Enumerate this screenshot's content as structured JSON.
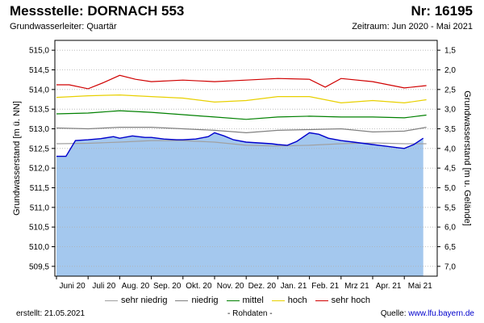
{
  "header": {
    "title": "Messstelle: DORNACH 553",
    "nr": "Nr: 16195",
    "aquifer": "Grundwasserleiter: Quartär",
    "period": "Zeitraum: Jun 2020 - Mai 2021"
  },
  "footer": {
    "created": "erstellt:  21.05.2021",
    "rohdaten": "- Rohdaten -",
    "source_label": "Quelle: ",
    "source_link": "www.lfu.bayern.de"
  },
  "colors": {
    "fill": "#a4c8ee",
    "measured": "#0000cc",
    "sehr_niedrig": "#a0a0a0",
    "niedrig": "#808080",
    "mittel": "#008000",
    "hoch": "#e8d000",
    "sehr_hoch": "#d00000"
  },
  "chart_data": {
    "type": "line",
    "title": "Messstelle: DORNACH 553",
    "ylabel": "Grundwasserstand [m ü. NN]",
    "y2label": "Grundwasserstand [m u. Gelände]",
    "ylim": [
      509.25,
      515.25
    ],
    "yticks": [
      "515,0",
      "514,5",
      "514,0",
      "513,5",
      "513,0",
      "512,5",
      "512,0",
      "511,5",
      "511,0",
      "510,5",
      "510,0",
      "509,5"
    ],
    "y2ticks": [
      "1,5",
      "2,0",
      "2,5",
      "3,0",
      "3,5",
      "4,0",
      "4,5",
      "5,0",
      "5,5",
      "6,0",
      "6,5",
      "7,0"
    ],
    "x_months": [
      "Juni 20",
      "Juli 20",
      "Aug. 20",
      "Sep. 20",
      "Okt. 20",
      "Nov. 20",
      "Dez. 20",
      "Jan. 21",
      "Feb. 21",
      "Mrz 21",
      "Apr. 21",
      "Mai 21"
    ],
    "x_months_display": [
      "Juni 20",
      "Juli 20",
      "Aug. 20",
      "Sep. 20",
      "Okt. 20",
      "Nov. 20",
      "Dez. 20",
      "Jan. 21",
      "Feb. 21",
      "Mrz 21",
      "Apr. 21",
      "Mai 21"
    ],
    "legend": [
      "sehr niedrig",
      "niedrig",
      "mittel",
      "hoch",
      "sehr hoch"
    ],
    "series": [
      {
        "name": "sehr niedrig",
        "t": [
          0,
          1,
          2,
          3,
          4,
          5,
          6,
          7,
          8,
          9,
          10,
          11,
          11.7
        ],
        "values": [
          512.62,
          512.63,
          512.66,
          512.7,
          512.7,
          512.66,
          512.58,
          512.56,
          512.58,
          512.62,
          512.64,
          512.62,
          512.62
        ]
      },
      {
        "name": "niedrig",
        "t": [
          0,
          1,
          2,
          3,
          4,
          5,
          6,
          7,
          8,
          9,
          10,
          11,
          11.7
        ],
        "values": [
          513.02,
          513.0,
          513.04,
          513.04,
          513.0,
          512.96,
          512.9,
          512.96,
          512.98,
          513.0,
          512.92,
          512.94,
          513.04
        ]
      },
      {
        "name": "mittel",
        "t": [
          0,
          1,
          2,
          3,
          4,
          5,
          6,
          7,
          8,
          9,
          10,
          11,
          11.7
        ],
        "values": [
          513.38,
          513.4,
          513.46,
          513.42,
          513.36,
          513.3,
          513.24,
          513.3,
          513.32,
          513.3,
          513.3,
          513.28,
          513.35
        ]
      },
      {
        "name": "hoch",
        "t": [
          0,
          1,
          2,
          3,
          4,
          5,
          6,
          7,
          8,
          9,
          10,
          11,
          11.7
        ],
        "values": [
          513.8,
          513.84,
          513.86,
          513.82,
          513.78,
          513.68,
          513.72,
          513.82,
          513.82,
          513.66,
          513.72,
          513.66,
          513.74
        ]
      },
      {
        "name": "sehr hoch",
        "t": [
          0,
          0.4,
          1,
          1.5,
          2,
          2.5,
          3,
          4,
          5,
          6,
          7,
          8,
          8.5,
          9,
          10,
          11,
          11.7
        ],
        "values": [
          514.12,
          514.12,
          514.02,
          514.18,
          514.36,
          514.26,
          514.2,
          514.24,
          514.2,
          514.24,
          514.28,
          514.26,
          514.06,
          514.28,
          514.2,
          514.04,
          514.1
        ]
      },
      {
        "name": "Messwerte",
        "t": [
          0,
          0.3,
          0.6,
          1,
          1.4,
          1.8,
          2,
          2.4,
          2.8,
          3,
          3.4,
          3.8,
          4,
          4.4,
          4.8,
          5,
          5.3,
          5.6,
          6,
          6.4,
          6.8,
          7,
          7.3,
          7.6,
          8,
          8.3,
          8.6,
          9,
          9.4,
          9.8,
          10,
          10.4,
          10.8,
          11,
          11.3,
          11.6
        ],
        "values": [
          512.3,
          512.3,
          512.7,
          512.72,
          512.75,
          512.8,
          512.76,
          512.82,
          512.78,
          512.78,
          512.74,
          512.72,
          512.72,
          512.74,
          512.8,
          512.9,
          512.82,
          512.72,
          512.66,
          512.64,
          512.62,
          512.6,
          512.58,
          512.68,
          512.9,
          512.86,
          512.76,
          512.7,
          512.66,
          512.62,
          512.6,
          512.56,
          512.52,
          512.5,
          512.6,
          512.76
        ]
      }
    ]
  }
}
